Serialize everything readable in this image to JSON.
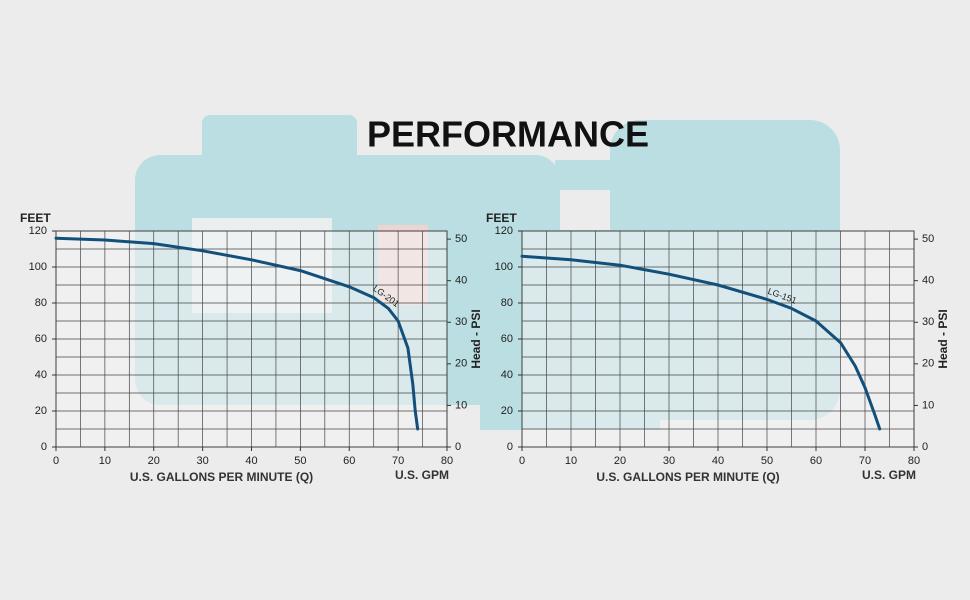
{
  "title": "PERFORMANCE",
  "chart_data": [
    {
      "type": "line",
      "y_label": "FEET",
      "x_label": "U.S. GALLONS PER MINUTE (Q)",
      "x_unit_label": "U.S. GPM",
      "y2_label": "Head - PSI",
      "x": [
        0,
        10,
        20,
        30,
        40,
        50,
        60,
        65,
        68,
        70,
        72,
        73,
        73.5,
        74
      ],
      "series": [
        {
          "name": "LG-201",
          "color": "#124f7b",
          "values": [
            116,
            115,
            113,
            109,
            104,
            98,
            89,
            83,
            77,
            70,
            55,
            35,
            20,
            10
          ]
        }
      ],
      "xlim": [
        0,
        80
      ],
      "xticks": [
        0,
        10,
        20,
        30,
        40,
        50,
        60,
        70,
        80
      ],
      "ylim": [
        0,
        120
      ],
      "yticks": [
        0,
        20,
        40,
        60,
        80,
        100,
        120
      ],
      "y2lim": [
        0,
        51.95
      ],
      "y2ticks": [
        0,
        10,
        20,
        30,
        40,
        50
      ],
      "x_grid": [
        0,
        5,
        10,
        15,
        20,
        25,
        30,
        35,
        40,
        45,
        50,
        55,
        60,
        65,
        70,
        75,
        80
      ],
      "y_grid": [
        0,
        10,
        20,
        30,
        40,
        50,
        60,
        70,
        80,
        90,
        100,
        110,
        120
      ]
    },
    {
      "type": "line",
      "y_label": "FEET",
      "x_label": "U.S. GALLONS PER MINUTE (Q)",
      "x_unit_label": "U.S. GPM",
      "y2_label": "Head - PSI",
      "x": [
        0,
        10,
        20,
        30,
        40,
        50,
        55,
        60,
        65,
        68,
        70,
        72,
        73
      ],
      "series": [
        {
          "name": "LG-151",
          "color": "#124f7b",
          "values": [
            106,
            104,
            101,
            96,
            90,
            82,
            77,
            70,
            58,
            45,
            33,
            18,
            10
          ]
        }
      ],
      "xlim": [
        0,
        80
      ],
      "xticks": [
        0,
        10,
        20,
        30,
        40,
        50,
        60,
        70,
        80
      ],
      "ylim": [
        0,
        120
      ],
      "yticks": [
        0,
        20,
        40,
        60,
        80,
        100,
        120
      ],
      "y2lim": [
        0,
        51.95
      ],
      "y2ticks": [
        0,
        10,
        20,
        30,
        40,
        50
      ],
      "x_grid": [
        0,
        5,
        10,
        15,
        20,
        25,
        30,
        35,
        40,
        45,
        50,
        55,
        60,
        65,
        70,
        75,
        80
      ],
      "y_grid": [
        0,
        10,
        20,
        30,
        40,
        50,
        60,
        70,
        80,
        90,
        100,
        110,
        120
      ]
    }
  ]
}
